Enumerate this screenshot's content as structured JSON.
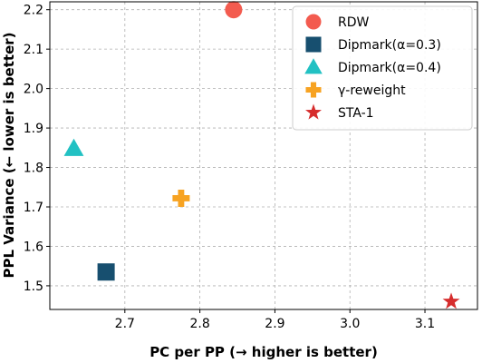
{
  "chart_data": {
    "type": "scatter",
    "xlabel": "PC per PP (→ higher is better)",
    "ylabel": "PPL Variance (← lower is better)",
    "xlim": [
      2.6,
      3.17
    ],
    "ylim": [
      1.44,
      2.22
    ],
    "xticks": [
      2.7,
      2.8,
      2.9,
      3.0,
      3.1
    ],
    "xtick_labels": [
      "2.7",
      "2.8",
      "2.9",
      "3.0",
      "3.1"
    ],
    "yticks": [
      1.5,
      1.6,
      1.7,
      1.8,
      1.9,
      2.0,
      2.1,
      2.2
    ],
    "ytick_labels": [
      "1.5",
      "1.6",
      "1.7",
      "1.8",
      "1.9",
      "2.0",
      "2.1",
      "2.2"
    ],
    "grid": true,
    "legend_position": "top-right",
    "series": [
      {
        "name": "RDW",
        "x": 2.845,
        "y": 2.2,
        "marker": "circle",
        "color": "#f35b4f"
      },
      {
        "name": "Dipmark(α=0.3)",
        "x": 2.675,
        "y": 1.535,
        "marker": "square",
        "color": "#174f6f"
      },
      {
        "name": "Dipmark(α=0.4)",
        "x": 2.632,
        "y": 1.848,
        "marker": "triangle",
        "color": "#22c1c3"
      },
      {
        "name": "γ-reweight",
        "x": 2.775,
        "y": 1.722,
        "marker": "plus",
        "color": "#f7a322"
      },
      {
        "name": "STA-1",
        "x": 3.135,
        "y": 1.46,
        "marker": "star",
        "color": "#d62d2d"
      }
    ]
  }
}
